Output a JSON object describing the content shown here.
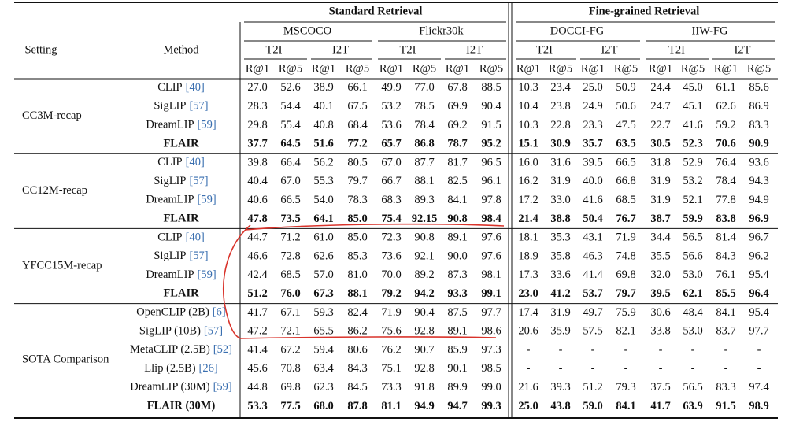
{
  "header": {
    "super_groups": [
      "Standard Retrieval",
      "Fine-grained Retrieval"
    ],
    "setting": "Setting",
    "method": "Method",
    "datasets": [
      "MSCOCO",
      "Flickr30k",
      "DOCCI-FG",
      "IIW-FG"
    ],
    "directions": [
      "T2I",
      "I2T"
    ],
    "metrics": [
      "R@1",
      "R@5"
    ]
  },
  "groups": [
    {
      "setting": "CC3M-recap",
      "rows": [
        {
          "method": "CLIP",
          "cite": "[40]",
          "bold": false,
          "values": [
            "27.0",
            "52.6",
            "38.9",
            "66.1",
            "49.9",
            "77.0",
            "67.8",
            "88.5",
            "10.3",
            "23.4",
            "25.0",
            "50.9",
            "24.4",
            "45.0",
            "61.1",
            "85.6"
          ]
        },
        {
          "method": "SigLIP",
          "cite": "[57]",
          "bold": false,
          "values": [
            "28.3",
            "54.4",
            "40.1",
            "67.5",
            "53.2",
            "78.5",
            "69.9",
            "90.4",
            "10.4",
            "23.8",
            "24.9",
            "50.6",
            "24.7",
            "45.1",
            "62.6",
            "86.9"
          ]
        },
        {
          "method": "DreamLIP",
          "cite": "[59]",
          "bold": false,
          "values": [
            "29.8",
            "55.4",
            "40.8",
            "68.4",
            "53.6",
            "78.4",
            "69.2",
            "91.5",
            "10.3",
            "22.8",
            "23.3",
            "47.5",
            "22.7",
            "41.6",
            "59.2",
            "83.3"
          ]
        },
        {
          "method": "FLAIR",
          "bold": true,
          "values": [
            "37.7",
            "64.5",
            "51.6",
            "77.2",
            "65.7",
            "86.8",
            "78.7",
            "95.2",
            "15.1",
            "30.9",
            "35.7",
            "63.5",
            "30.5",
            "52.3",
            "70.6",
            "90.9"
          ]
        }
      ]
    },
    {
      "setting": "CC12M-recap",
      "rows": [
        {
          "method": "CLIP",
          "cite": "[40]",
          "bold": false,
          "values": [
            "39.8",
            "66.4",
            "56.2",
            "80.5",
            "67.0",
            "87.7",
            "81.7",
            "96.5",
            "16.0",
            "31.6",
            "39.5",
            "66.5",
            "31.8",
            "52.9",
            "76.4",
            "93.6"
          ]
        },
        {
          "method": "SigLIP",
          "cite": "[57]",
          "bold": false,
          "values": [
            "40.4",
            "67.0",
            "55.3",
            "79.7",
            "66.7",
            "88.1",
            "82.5",
            "96.1",
            "16.2",
            "31.9",
            "40.0",
            "66.8",
            "31.9",
            "53.2",
            "78.4",
            "94.3"
          ]
        },
        {
          "method": "DreamLIP",
          "cite": "[59]",
          "bold": false,
          "values": [
            "40.6",
            "66.5",
            "54.0",
            "78.3",
            "68.3",
            "89.3",
            "84.1",
            "97.8",
            "17.2",
            "33.0",
            "41.6",
            "68.5",
            "31.9",
            "52.1",
            "77.8",
            "94.9"
          ]
        },
        {
          "method": "FLAIR",
          "bold": true,
          "values": [
            "47.8",
            "73.5",
            "64.1",
            "85.0",
            "75.4",
            "92.15",
            "90.8",
            "98.4",
            "21.4",
            "38.8",
            "50.4",
            "76.7",
            "38.7",
            "59.9",
            "83.8",
            "96.9"
          ]
        }
      ]
    },
    {
      "setting": "YFCC15M-recap",
      "rows": [
        {
          "method": "CLIP",
          "cite": "[40]",
          "bold": false,
          "values": [
            "44.7",
            "71.2",
            "61.0",
            "85.0",
            "72.3",
            "90.8",
            "89.1",
            "97.6",
            "18.1",
            "35.3",
            "43.1",
            "71.9",
            "34.4",
            "56.5",
            "81.4",
            "96.7"
          ]
        },
        {
          "method": "SigLIP",
          "cite": "[57]",
          "bold": false,
          "values": [
            "46.6",
            "72.8",
            "62.6",
            "85.3",
            "73.6",
            "92.1",
            "90.0",
            "97.6",
            "18.9",
            "35.8",
            "46.3",
            "74.8",
            "35.5",
            "56.6",
            "84.3",
            "96.2"
          ]
        },
        {
          "method": "DreamLIP",
          "cite": "[59]",
          "bold": false,
          "values": [
            "42.4",
            "68.5",
            "57.0",
            "81.0",
            "70.0",
            "89.2",
            "87.3",
            "98.1",
            "17.3",
            "33.6",
            "41.4",
            "69.8",
            "32.0",
            "53.0",
            "76.1",
            "95.4"
          ]
        },
        {
          "method": "FLAIR",
          "bold": true,
          "values": [
            "51.2",
            "76.0",
            "67.3",
            "88.1",
            "79.2",
            "94.2",
            "93.3",
            "99.1",
            "23.0",
            "41.2",
            "53.7",
            "79.7",
            "39.5",
            "62.1",
            "85.5",
            "96.4"
          ]
        }
      ]
    },
    {
      "setting": "SOTA Comparison",
      "rows": [
        {
          "method": "OpenCLIP (2B)",
          "cite": "[6]",
          "bold": false,
          "values": [
            "41.7",
            "67.1",
            "59.3",
            "82.4",
            "71.9",
            "90.4",
            "87.5",
            "97.7",
            "17.4",
            "31.9",
            "49.7",
            "75.9",
            "30.6",
            "48.4",
            "84.1",
            "95.4"
          ]
        },
        {
          "method": "SigLIP (10B)",
          "cite": "[57]",
          "bold": false,
          "values": [
            "47.2",
            "72.1",
            "65.5",
            "86.2",
            "75.6",
            "92.8",
            "89.1",
            "98.6",
            "20.6",
            "35.9",
            "57.5",
            "82.1",
            "33.8",
            "53.0",
            "83.7",
            "97.7"
          ]
        },
        {
          "method": "MetaCLIP (2.5B)",
          "cite": "[52]",
          "bold": false,
          "values": [
            "41.4",
            "67.2",
            "59.4",
            "80.6",
            "76.2",
            "90.7",
            "85.9",
            "97.3",
            "-",
            "-",
            "-",
            "-",
            "-",
            "-",
            "-",
            "-"
          ]
        },
        {
          "method": "Llip (2.5B)",
          "cite": "[26]",
          "bold": false,
          "values": [
            "45.6",
            "70.8",
            "63.4",
            "84.3",
            "75.1",
            "92.8",
            "90.1",
            "98.5",
            "-",
            "-",
            "-",
            "-",
            "-",
            "-",
            "-",
            "-"
          ]
        },
        {
          "method": "DreamLIP (30M)",
          "cite": "[59]",
          "bold": false,
          "values": [
            "44.8",
            "69.8",
            "62.3",
            "84.5",
            "73.3",
            "91.8",
            "89.9",
            "99.0",
            "21.6",
            "39.3",
            "51.2",
            "79.3",
            "37.5",
            "56.5",
            "83.3",
            "97.4"
          ]
        },
        {
          "method": "FLAIR (30M)",
          "bold": true,
          "values": [
            "53.3",
            "77.5",
            "68.0",
            "87.8",
            "81.1",
            "94.9",
            "94.7",
            "99.3",
            "25.0",
            "43.8",
            "59.0",
            "84.1",
            "41.7",
            "63.9",
            "91.5",
            "98.9"
          ]
        }
      ]
    }
  ]
}
